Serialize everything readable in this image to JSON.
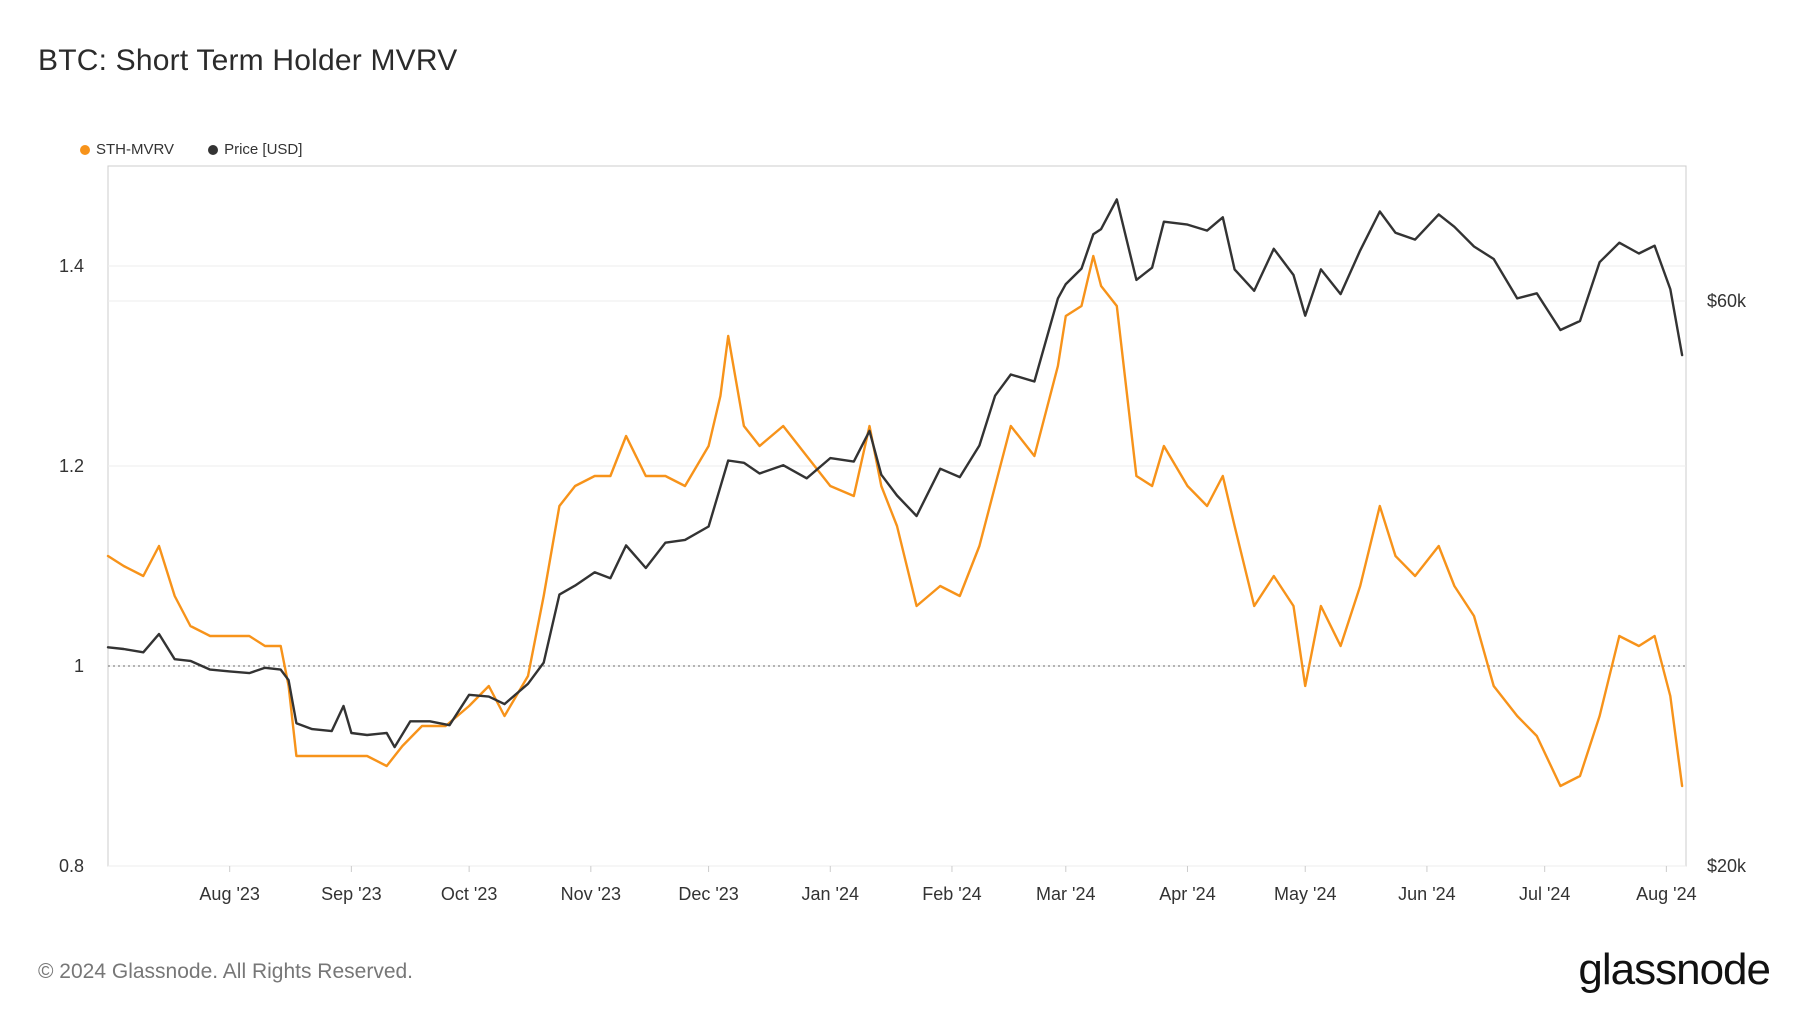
{
  "title": "BTC: Short Term Holder MVRV",
  "footer": "© 2024 Glassnode. All Rights Reserved.",
  "logo": "glassnode",
  "colors": {
    "mvrv": "#f7931a",
    "price": "#333333",
    "grid": "#ececec",
    "axis": "#cccccc",
    "reference": "#888888"
  },
  "chart_data": {
    "type": "line",
    "title": "BTC: Short Term Holder MVRV",
    "legend_position": "top-left",
    "grid": true,
    "x_labels": [
      "Aug '23",
      "Sep '23",
      "Oct '23",
      "Nov '23",
      "Dec '23",
      "Jan '24",
      "Feb '24",
      "Mar '24",
      "Apr '24",
      "May '24",
      "Jun '24",
      "Jul '24",
      "Aug '24"
    ],
    "x_range": [
      "2023-07-01",
      "2024-08-06"
    ],
    "y_left": {
      "label": "",
      "ticks": [
        "0.8",
        "1",
        "1.2",
        "1.4"
      ],
      "range": [
        0.8,
        1.5
      ],
      "reference_line": 1.0
    },
    "y_right": {
      "label": "",
      "ticks": [
        "$20k",
        "$60k"
      ],
      "scale": "log",
      "range": [
        20000,
        78000
      ]
    },
    "series": [
      {
        "name": "STH-MVRV",
        "axis": "left",
        "points": [
          [
            "2023-07-01",
            1.11
          ],
          [
            "2023-07-05",
            1.1
          ],
          [
            "2023-07-10",
            1.09
          ],
          [
            "2023-07-14",
            1.12
          ],
          [
            "2023-07-18",
            1.07
          ],
          [
            "2023-07-22",
            1.04
          ],
          [
            "2023-07-27",
            1.03
          ],
          [
            "2023-08-01",
            1.03
          ],
          [
            "2023-08-06",
            1.03
          ],
          [
            "2023-08-10",
            1.02
          ],
          [
            "2023-08-14",
            1.02
          ],
          [
            "2023-08-16",
            0.98
          ],
          [
            "2023-08-18",
            0.91
          ],
          [
            "2023-08-22",
            0.91
          ],
          [
            "2023-08-27",
            0.91
          ],
          [
            "2023-08-31",
            0.91
          ],
          [
            "2023-09-05",
            0.91
          ],
          [
            "2023-09-10",
            0.9
          ],
          [
            "2023-09-14",
            0.92
          ],
          [
            "2023-09-19",
            0.94
          ],
          [
            "2023-09-25",
            0.94
          ],
          [
            "2023-10-01",
            0.96
          ],
          [
            "2023-10-06",
            0.98
          ],
          [
            "2023-10-10",
            0.95
          ],
          [
            "2023-10-16",
            0.99
          ],
          [
            "2023-10-20",
            1.07
          ],
          [
            "2023-10-24",
            1.16
          ],
          [
            "2023-10-28",
            1.18
          ],
          [
            "2023-11-02",
            1.19
          ],
          [
            "2023-11-06",
            1.19
          ],
          [
            "2023-11-10",
            1.23
          ],
          [
            "2023-11-15",
            1.19
          ],
          [
            "2023-11-20",
            1.19
          ],
          [
            "2023-11-25",
            1.18
          ],
          [
            "2023-12-01",
            1.22
          ],
          [
            "2023-12-04",
            1.27
          ],
          [
            "2023-12-06",
            1.33
          ],
          [
            "2023-12-10",
            1.24
          ],
          [
            "2023-12-14",
            1.22
          ],
          [
            "2023-12-20",
            1.24
          ],
          [
            "2023-12-26",
            1.21
          ],
          [
            "2024-01-01",
            1.18
          ],
          [
            "2024-01-07",
            1.17
          ],
          [
            "2024-01-11",
            1.24
          ],
          [
            "2024-01-14",
            1.18
          ],
          [
            "2024-01-18",
            1.14
          ],
          [
            "2024-01-23",
            1.06
          ],
          [
            "2024-01-29",
            1.08
          ],
          [
            "2024-02-03",
            1.07
          ],
          [
            "2024-02-08",
            1.12
          ],
          [
            "2024-02-12",
            1.18
          ],
          [
            "2024-02-16",
            1.24
          ],
          [
            "2024-02-22",
            1.21
          ],
          [
            "2024-02-28",
            1.3
          ],
          [
            "2024-03-01",
            1.35
          ],
          [
            "2024-03-05",
            1.36
          ],
          [
            "2024-03-08",
            1.41
          ],
          [
            "2024-03-10",
            1.38
          ],
          [
            "2024-03-14",
            1.36
          ],
          [
            "2024-03-19",
            1.19
          ],
          [
            "2024-03-23",
            1.18
          ],
          [
            "2024-03-26",
            1.22
          ],
          [
            "2024-04-01",
            1.18
          ],
          [
            "2024-04-06",
            1.16
          ],
          [
            "2024-04-10",
            1.19
          ],
          [
            "2024-04-13",
            1.14
          ],
          [
            "2024-04-18",
            1.06
          ],
          [
            "2024-04-23",
            1.09
          ],
          [
            "2024-04-28",
            1.06
          ],
          [
            "2024-05-01",
            0.98
          ],
          [
            "2024-05-05",
            1.06
          ],
          [
            "2024-05-10",
            1.02
          ],
          [
            "2024-05-15",
            1.08
          ],
          [
            "2024-05-20",
            1.16
          ],
          [
            "2024-05-24",
            1.11
          ],
          [
            "2024-05-29",
            1.09
          ],
          [
            "2024-06-04",
            1.12
          ],
          [
            "2024-06-08",
            1.08
          ],
          [
            "2024-06-13",
            1.05
          ],
          [
            "2024-06-18",
            0.98
          ],
          [
            "2024-06-24",
            0.95
          ],
          [
            "2024-06-29",
            0.93
          ],
          [
            "2024-07-05",
            0.88
          ],
          [
            "2024-07-10",
            0.89
          ],
          [
            "2024-07-15",
            0.95
          ],
          [
            "2024-07-20",
            1.03
          ],
          [
            "2024-07-25",
            1.02
          ],
          [
            "2024-07-29",
            1.03
          ],
          [
            "2024-08-02",
            0.97
          ],
          [
            "2024-08-05",
            0.88
          ]
        ]
      },
      {
        "name": "Price [USD]",
        "axis": "right",
        "points": [
          [
            "2023-07-01",
            30600
          ],
          [
            "2023-07-05",
            30500
          ],
          [
            "2023-07-10",
            30300
          ],
          [
            "2023-07-14",
            31400
          ],
          [
            "2023-07-18",
            29900
          ],
          [
            "2023-07-22",
            29800
          ],
          [
            "2023-07-27",
            29300
          ],
          [
            "2023-08-01",
            29200
          ],
          [
            "2023-08-06",
            29100
          ],
          [
            "2023-08-10",
            29400
          ],
          [
            "2023-08-14",
            29300
          ],
          [
            "2023-08-16",
            28700
          ],
          [
            "2023-08-18",
            26400
          ],
          [
            "2023-08-22",
            26100
          ],
          [
            "2023-08-27",
            26000
          ],
          [
            "2023-08-30",
            27300
          ],
          [
            "2023-09-01",
            25900
          ],
          [
            "2023-09-05",
            25800
          ],
          [
            "2023-09-10",
            25900
          ],
          [
            "2023-09-12",
            25200
          ],
          [
            "2023-09-16",
            26500
          ],
          [
            "2023-09-21",
            26500
          ],
          [
            "2023-09-26",
            26300
          ],
          [
            "2023-10-01",
            27900
          ],
          [
            "2023-10-06",
            27800
          ],
          [
            "2023-10-10",
            27400
          ],
          [
            "2023-10-16",
            28500
          ],
          [
            "2023-10-20",
            29700
          ],
          [
            "2023-10-24",
            33900
          ],
          [
            "2023-10-28",
            34500
          ],
          [
            "2023-11-02",
            35400
          ],
          [
            "2023-11-06",
            35000
          ],
          [
            "2023-11-10",
            37300
          ],
          [
            "2023-11-15",
            35700
          ],
          [
            "2023-11-20",
            37500
          ],
          [
            "2023-11-25",
            37700
          ],
          [
            "2023-12-01",
            38700
          ],
          [
            "2023-12-04",
            41800
          ],
          [
            "2023-12-06",
            44000
          ],
          [
            "2023-12-10",
            43800
          ],
          [
            "2023-12-14",
            42900
          ],
          [
            "2023-12-20",
            43600
          ],
          [
            "2023-12-26",
            42500
          ],
          [
            "2024-01-01",
            44200
          ],
          [
            "2024-01-07",
            43900
          ],
          [
            "2024-01-11",
            46600
          ],
          [
            "2024-01-14",
            42800
          ],
          [
            "2024-01-18",
            41100
          ],
          [
            "2024-01-23",
            39500
          ],
          [
            "2024-01-29",
            43300
          ],
          [
            "2024-02-03",
            42600
          ],
          [
            "2024-02-08",
            45300
          ],
          [
            "2024-02-12",
            49900
          ],
          [
            "2024-02-16",
            52000
          ],
          [
            "2024-02-22",
            51300
          ],
          [
            "2024-02-28",
            60300
          ],
          [
            "2024-03-01",
            62000
          ],
          [
            "2024-03-05",
            63900
          ],
          [
            "2024-03-08",
            68300
          ],
          [
            "2024-03-10",
            69000
          ],
          [
            "2024-03-14",
            73100
          ],
          [
            "2024-03-19",
            62500
          ],
          [
            "2024-03-23",
            64000
          ],
          [
            "2024-03-26",
            70000
          ],
          [
            "2024-04-01",
            69600
          ],
          [
            "2024-04-06",
            68800
          ],
          [
            "2024-04-10",
            70600
          ],
          [
            "2024-04-13",
            63800
          ],
          [
            "2024-04-18",
            61200
          ],
          [
            "2024-04-23",
            66400
          ],
          [
            "2024-04-28",
            63100
          ],
          [
            "2024-05-01",
            58300
          ],
          [
            "2024-05-05",
            63800
          ],
          [
            "2024-05-10",
            60800
          ],
          [
            "2024-05-15",
            66200
          ],
          [
            "2024-05-20",
            71400
          ],
          [
            "2024-05-24",
            68500
          ],
          [
            "2024-05-29",
            67600
          ],
          [
            "2024-06-04",
            71000
          ],
          [
            "2024-06-08",
            69300
          ],
          [
            "2024-06-13",
            66700
          ],
          [
            "2024-06-18",
            65100
          ],
          [
            "2024-06-24",
            60300
          ],
          [
            "2024-06-29",
            60900
          ],
          [
            "2024-07-05",
            56700
          ],
          [
            "2024-07-10",
            57700
          ],
          [
            "2024-07-15",
            64700
          ],
          [
            "2024-07-20",
            67200
          ],
          [
            "2024-07-25",
            65800
          ],
          [
            "2024-07-29",
            66800
          ],
          [
            "2024-08-02",
            61400
          ],
          [
            "2024-08-05",
            54000
          ]
        ]
      }
    ]
  }
}
